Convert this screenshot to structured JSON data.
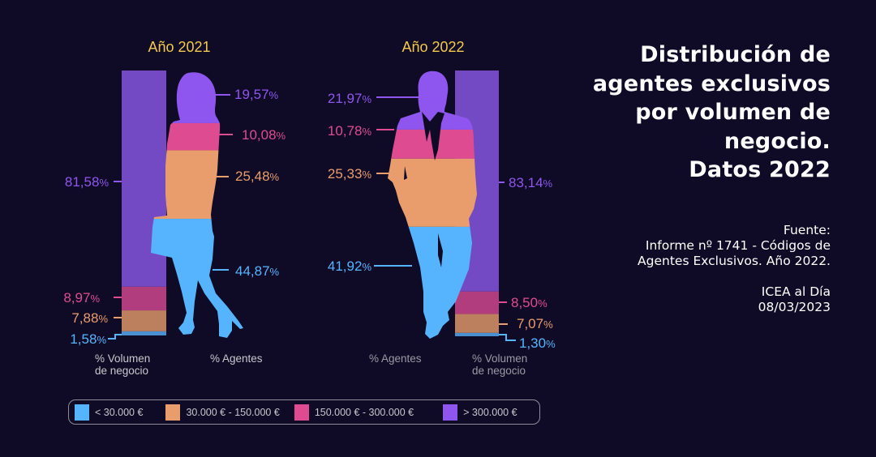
{
  "title": {
    "lines": [
      "Distribución de",
      "agentes exclusivos",
      "por volumen de",
      "negocio.",
      "Datos 2022"
    ]
  },
  "source": {
    "label": "Fuente:",
    "lines": [
      "Informe nº 1741 - Códigos de",
      "Agentes Exclusivos. Año 2022."
    ],
    "publisher": "ICEA al Día",
    "date": "08/03/2023"
  },
  "colors": {
    "background": "#0f0b26",
    "year_title": "#f2c94c",
    "silhouette": {
      "lt_30k": "#56b4ff",
      "30k_150k": "#e99d6c",
      "150k_300k": "#de4b91",
      "gt_300k": "#8e56ee"
    },
    "bar": {
      "lt_30k": "#4a90d0",
      "30k_150k": "#bd805e",
      "150k_300k": "#b13c7e",
      "gt_300k": "#7349c4"
    }
  },
  "legend": [
    {
      "label": "< 30.000 €",
      "color": "#56b4ff"
    },
    {
      "label": "30.000 € - 150.000 €",
      "color": "#e99d6c"
    },
    {
      "label": "150.000 € - 300.000 €",
      "color": "#de4b91"
    },
    {
      "label": "> 300.000 €",
      "color": "#8e56ee"
    }
  ],
  "chart_data": [
    {
      "type": "bar",
      "stacked": true,
      "title": "Año 2021",
      "categories": [
        "% Volumen de negocio",
        "% Agentes"
      ],
      "series": [
        {
          "name": "< 30.000 €",
          "values": [
            1.58,
            44.87
          ],
          "labels": [
            "1,58",
            "44,87"
          ]
        },
        {
          "name": "30.000 € - 150.000 €",
          "values": [
            7.88,
            25.48
          ],
          "labels": [
            "7,88",
            "25,48"
          ]
        },
        {
          "name": "150.000 € - 300.000 €",
          "values": [
            8.97,
            10.08
          ],
          "labels": [
            "8,97",
            "10,08"
          ]
        },
        {
          "name": "> 300.000 €",
          "values": [
            81.58,
            19.57
          ],
          "labels": [
            "81,58",
            "19,57"
          ]
        }
      ],
      "axis_labels": [
        "% Volumen",
        "de negocio",
        "% Agentes"
      ],
      "agents_shape": "woman-silhouette",
      "unit": "%"
    },
    {
      "type": "bar",
      "stacked": true,
      "title": "Año 2022",
      "categories": [
        "% Agentes",
        "% Volumen de negocio"
      ],
      "series": [
        {
          "name": "< 30.000 €",
          "values": [
            41.92,
            1.3
          ],
          "labels": [
            "41,92",
            "1,30"
          ]
        },
        {
          "name": "30.000 € - 150.000 €",
          "values": [
            25.33,
            7.07
          ],
          "labels": [
            "25,33",
            "7,07"
          ]
        },
        {
          "name": "150.000 € - 300.000 €",
          "values": [
            10.78,
            8.5
          ],
          "labels": [
            "10,78",
            "8,50"
          ]
        },
        {
          "name": "> 300.000 €",
          "values": [
            21.97,
            83.14
          ],
          "labels": [
            "21,97",
            "83,14"
          ]
        }
      ],
      "axis_labels": [
        "% Agentes",
        "% Volumen",
        "de negocio"
      ],
      "agents_shape": "man-silhouette",
      "unit": "%"
    }
  ]
}
